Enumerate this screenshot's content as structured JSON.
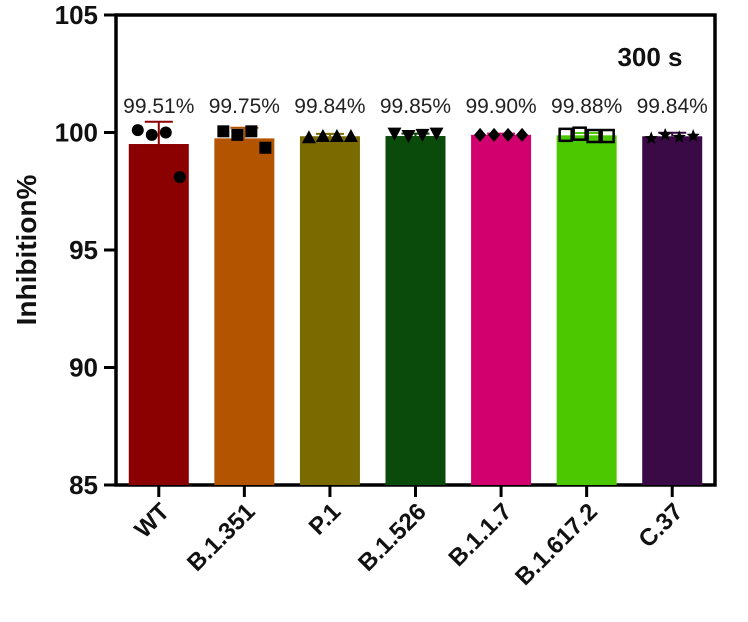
{
  "chart_data": {
    "type": "bar",
    "title": "",
    "annotation": "300 s",
    "xlabel": "",
    "ylabel": "Inhibition%",
    "ylim": [
      85,
      105
    ],
    "yticks": [
      "85",
      "90",
      "95",
      "100",
      "105"
    ],
    "categories": [
      "WT",
      "B.1.351",
      "P.1",
      "B.1.526",
      "B.1.1.7",
      "B.1.617.2",
      "C.37"
    ],
    "values": [
      99.51,
      99.75,
      99.84,
      99.85,
      99.9,
      99.88,
      99.84
    ],
    "value_labels": [
      "99.51%",
      "99.75%",
      "99.84%",
      "99.85%",
      "99.90%",
      "99.88%",
      "99.84%"
    ],
    "error": [
      0.95,
      0.45,
      0.1,
      0.1,
      0.05,
      0.1,
      0.15
    ],
    "colors": [
      "#8b0000",
      "#b35400",
      "#7a6a00",
      "#0a4a0a",
      "#d1006e",
      "#4cc800",
      "#3a0a47"
    ],
    "markers": [
      "circle",
      "square",
      "triangle-up",
      "triangle-down",
      "diamond",
      "open-square",
      "star"
    ],
    "points": [
      [
        100.1,
        99.9,
        100.0,
        98.1
      ],
      [
        100.05,
        99.9,
        100.05,
        99.35
      ],
      [
        99.8,
        99.85,
        99.85,
        99.85
      ],
      [
        99.95,
        99.85,
        99.9,
        99.95
      ],
      [
        99.9,
        99.9,
        99.9,
        99.9
      ],
      [
        99.9,
        99.95,
        99.85,
        99.85
      ],
      [
        99.75,
        99.9,
        99.8,
        99.85
      ]
    ],
    "grid": false,
    "legend": "none"
  }
}
